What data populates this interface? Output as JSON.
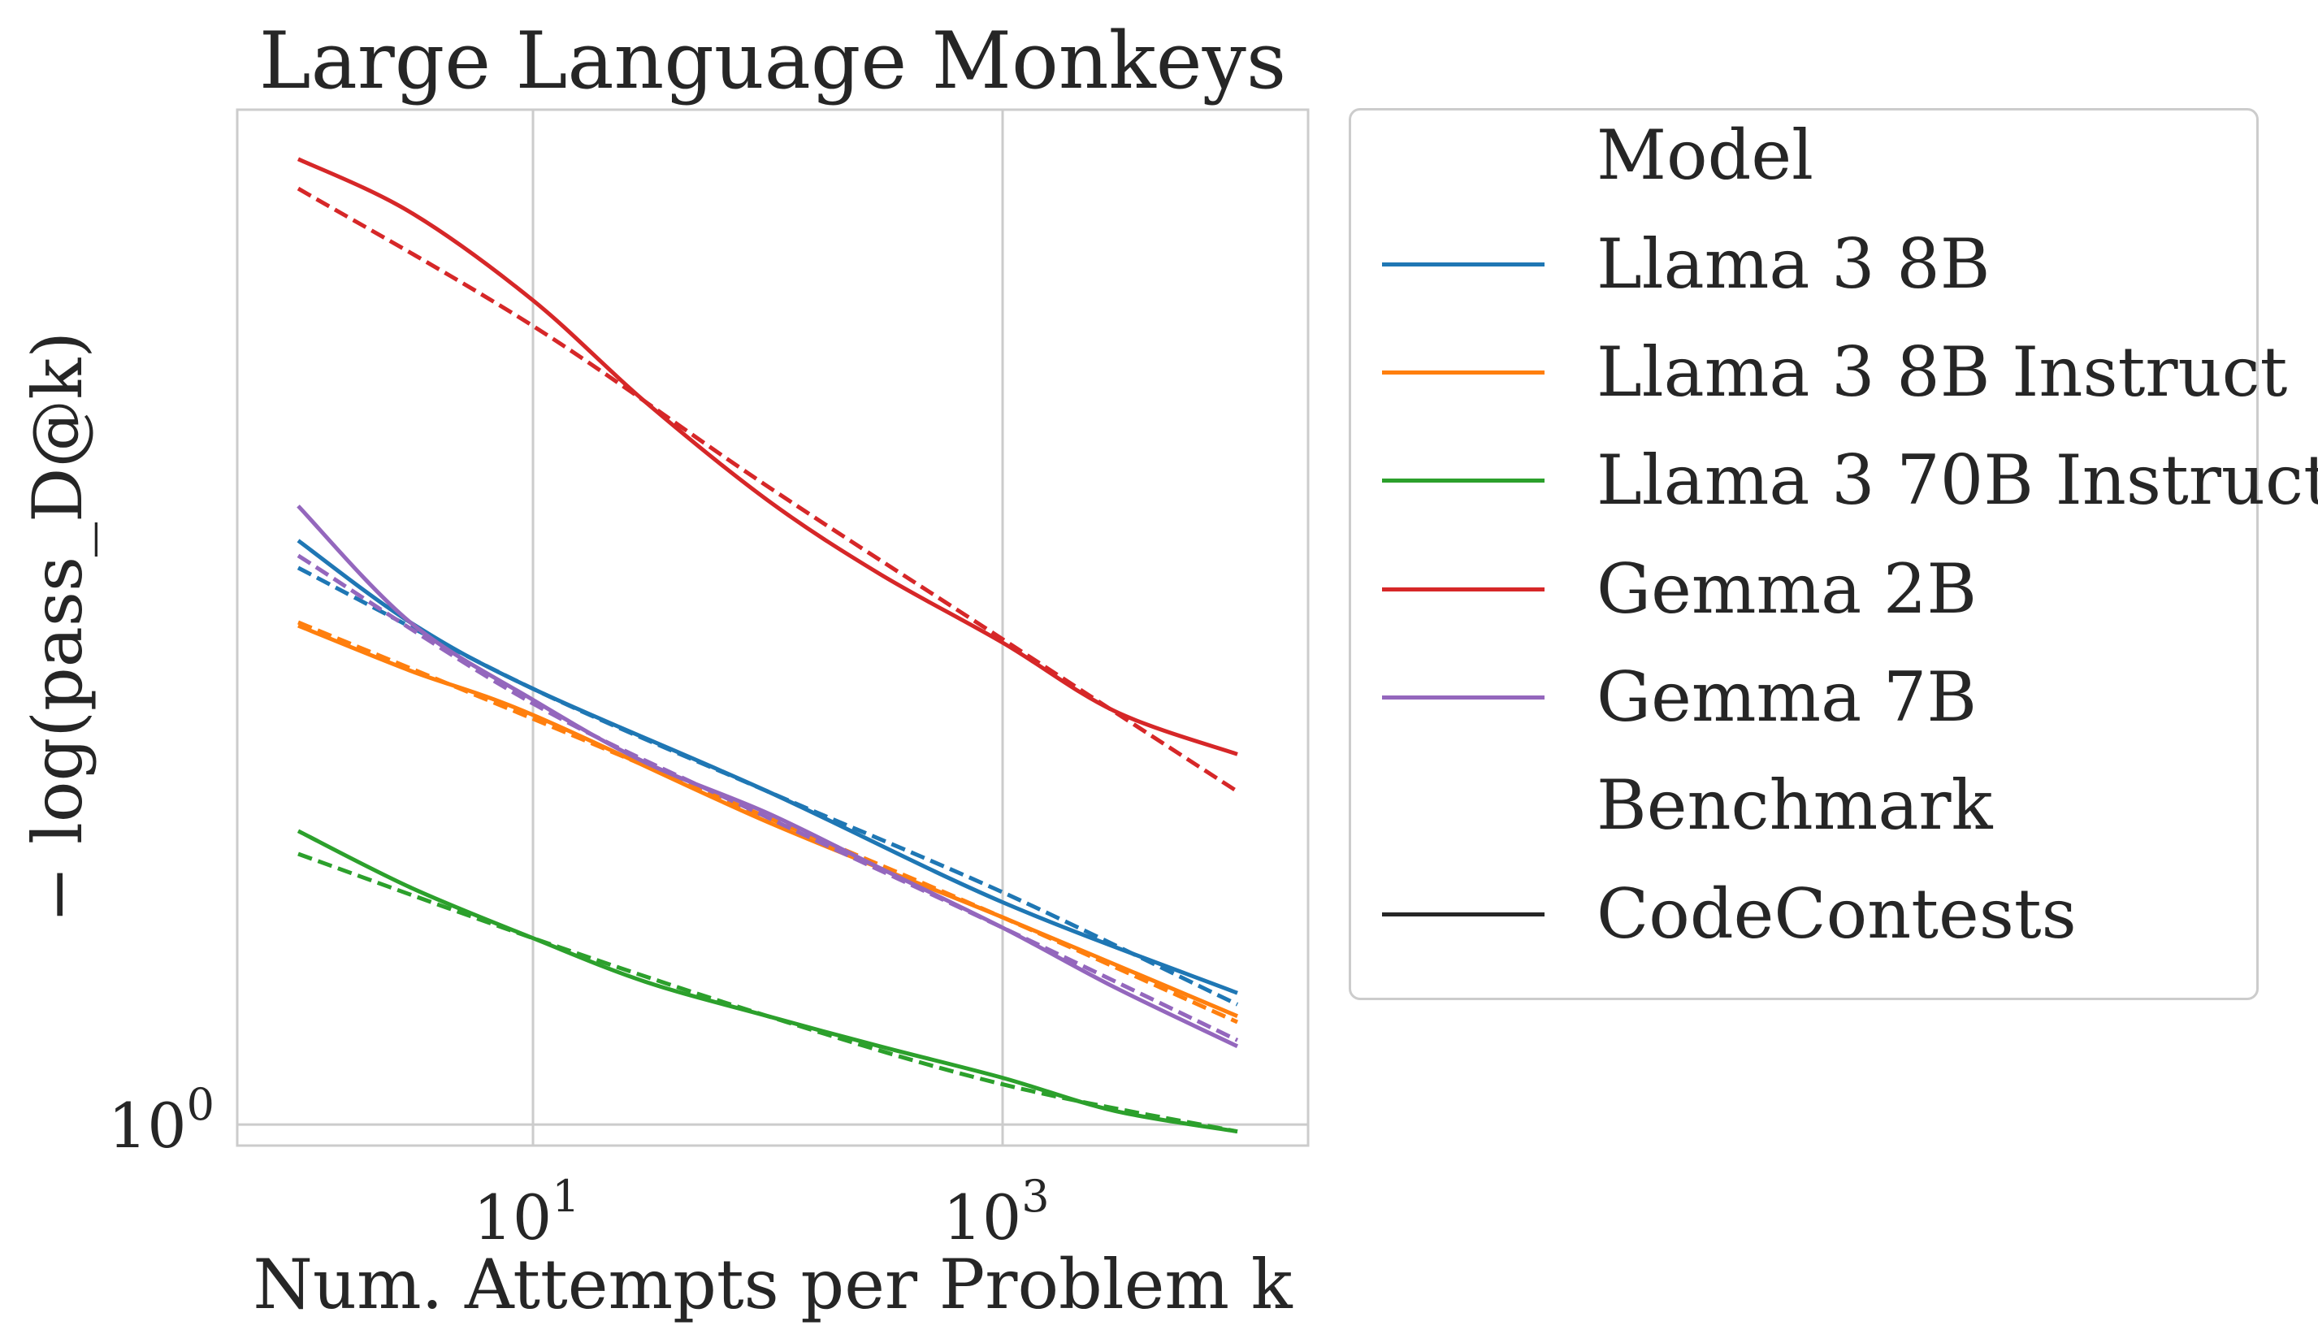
{
  "chart_data": {
    "type": "line",
    "title": "Large Language Monkeys",
    "xlabel": "Num. Attempts per Problem k",
    "ylabel": "− log(pass_D@k)",
    "xscale": "log",
    "yscale": "log",
    "xlim": [
      0.55,
      20000
    ],
    "ylim": [
      0.97,
      4.35
    ],
    "xticks": [
      {
        "value": 10,
        "base": "10",
        "exp": "1"
      },
      {
        "value": 1000,
        "base": "10",
        "exp": "3"
      }
    ],
    "yticks": [
      {
        "value": 1,
        "base": "10",
        "exp": "0"
      }
    ],
    "grid": true,
    "legend_position": "outside-right",
    "legend": {
      "model_heading": "Model",
      "models": [
        {
          "label": "Llama 3 8B",
          "color": "#1f77b4"
        },
        {
          "label": "Llama 3 8B Instruct",
          "color": "#ff7f0e"
        },
        {
          "label": "Llama 3 70B Instruct",
          "color": "#2ca02c"
        },
        {
          "label": "Gemma 2B",
          "color": "#d62728"
        },
        {
          "label": "Gemma 7B",
          "color": "#9467bd"
        }
      ],
      "benchmark_heading": "Benchmark",
      "benchmarks": [
        {
          "label": "CodeContests",
          "color": "#262626"
        }
      ]
    },
    "series": [
      {
        "name": "Llama 3 8B",
        "color": "#1f77b4",
        "style": "solid",
        "x": [
          1,
          3,
          10,
          100,
          1000,
          10000
        ],
        "y": [
          2.33,
          2.07,
          1.88,
          1.62,
          1.38,
          1.21
        ]
      },
      {
        "name": "Llama 3 8B",
        "color": "#1f77b4",
        "style": "dashed",
        "x": [
          1,
          10,
          100,
          1000,
          10000
        ],
        "y": [
          2.24,
          1.88,
          1.62,
          1.4,
          1.19
        ]
      },
      {
        "name": "Llama 3 8B Instruct",
        "color": "#ff7f0e",
        "style": "solid",
        "x": [
          1,
          3,
          10,
          100,
          1000,
          10000
        ],
        "y": [
          2.06,
          1.93,
          1.81,
          1.55,
          1.35,
          1.17
        ]
      },
      {
        "name": "Llama 3 8B Instruct",
        "color": "#ff7f0e",
        "style": "dashed",
        "x": [
          1,
          10,
          100,
          1000,
          10000
        ],
        "y": [
          2.07,
          1.8,
          1.56,
          1.35,
          1.16
        ]
      },
      {
        "name": "Llama 3 70B Instruct",
        "color": "#2ca02c",
        "style": "solid",
        "x": [
          1,
          3,
          10,
          30,
          100,
          300,
          1000,
          3000,
          10000
        ],
        "y": [
          1.53,
          1.41,
          1.31,
          1.23,
          1.17,
          1.12,
          1.07,
          1.02,
          0.99
        ]
      },
      {
        "name": "Llama 3 70B Instruct",
        "color": "#2ca02c",
        "style": "dashed",
        "x": [
          1,
          10,
          100,
          1000,
          10000
        ],
        "y": [
          1.48,
          1.31,
          1.17,
          1.06,
          0.99
        ]
      },
      {
        "name": "Gemma 2B",
        "color": "#d62728",
        "style": "solid",
        "x": [
          1,
          3,
          10,
          30,
          100,
          300,
          1000,
          3000,
          10000
        ],
        "y": [
          4.05,
          3.75,
          3.3,
          2.85,
          2.47,
          2.22,
          2.01,
          1.82,
          1.71
        ]
      },
      {
        "name": "Gemma 2B",
        "color": "#d62728",
        "style": "dashed",
        "x": [
          1,
          10,
          100,
          1000,
          10000
        ],
        "y": [
          3.88,
          3.18,
          2.52,
          2.02,
          1.62
        ]
      },
      {
        "name": "Gemma 7B",
        "color": "#9467bd",
        "style": "solid",
        "x": [
          1,
          3,
          10,
          30,
          100,
          300,
          1000,
          3000,
          10000
        ],
        "y": [
          2.45,
          2.07,
          1.85,
          1.69,
          1.57,
          1.45,
          1.33,
          1.22,
          1.12
        ]
      },
      {
        "name": "Gemma 7B",
        "color": "#9467bd",
        "style": "dashed",
        "x": [
          1,
          10,
          100,
          1000,
          10000
        ],
        "y": [
          2.28,
          1.84,
          1.56,
          1.33,
          1.13
        ]
      }
    ]
  }
}
